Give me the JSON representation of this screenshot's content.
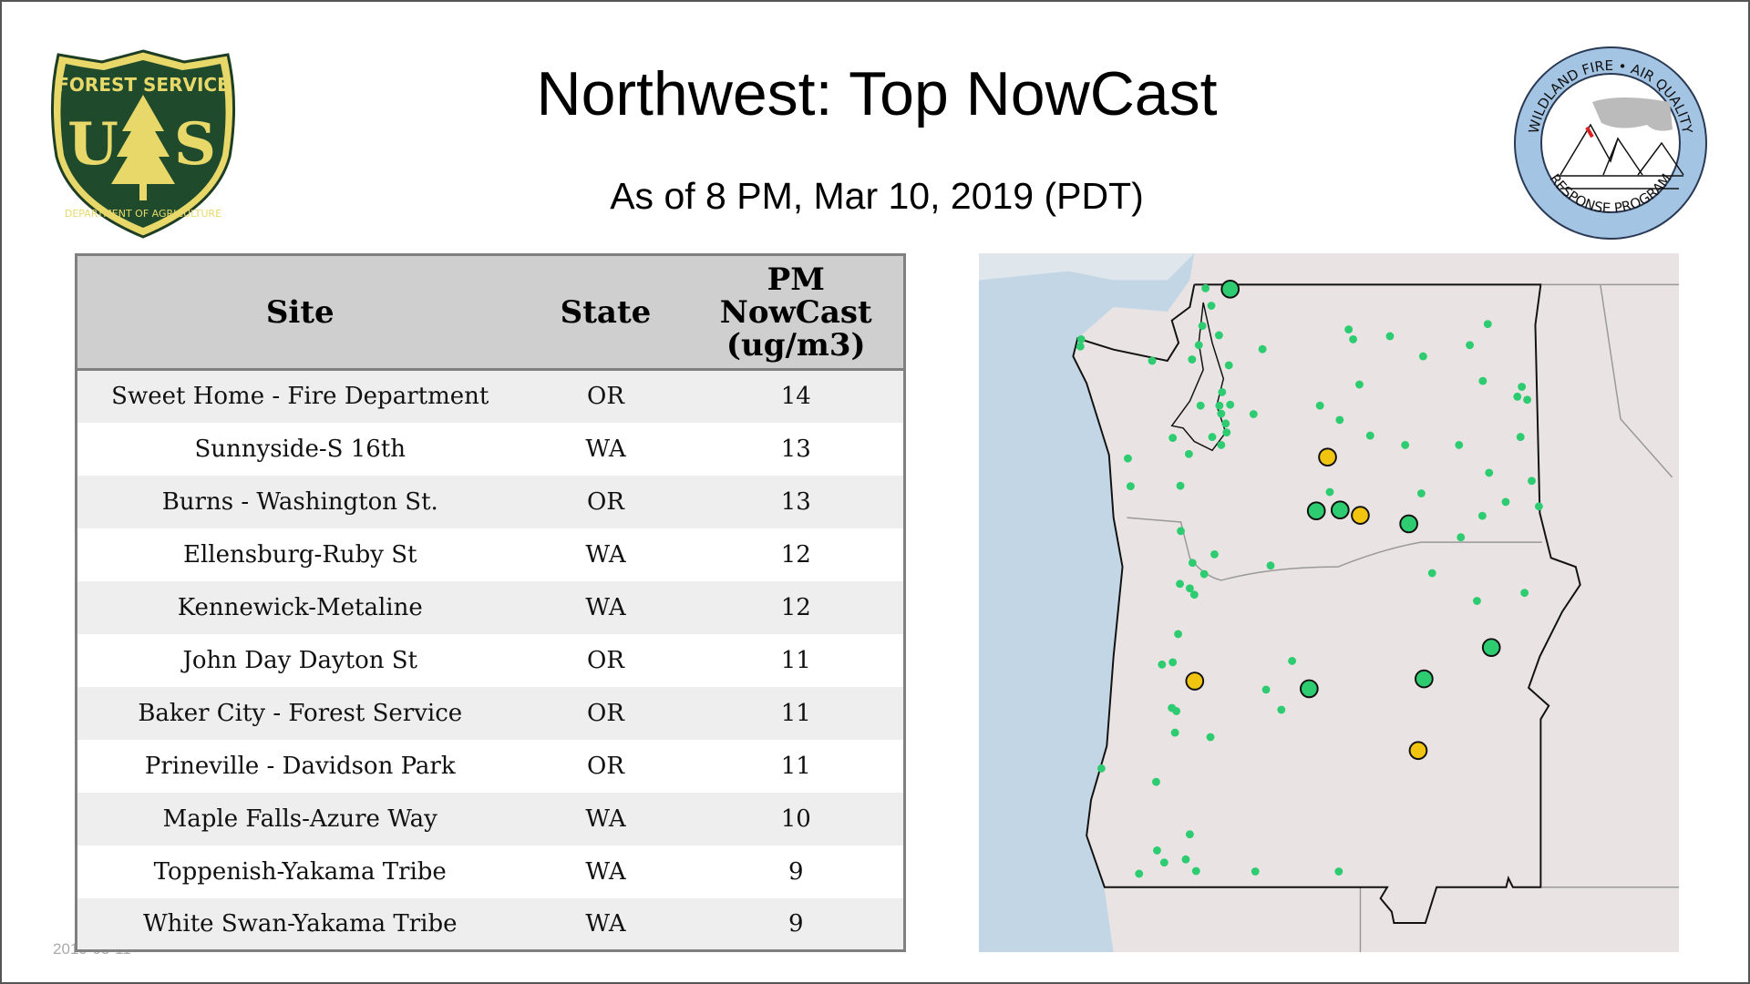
{
  "header": {
    "title": "Northwest: Top NowCast",
    "subtitle": "As of  8 PM, Mar 10, 2019 (PDT)"
  },
  "logos": {
    "left": "FOREST SERVICE U S DEPARTMENT OF AGRICULTURE",
    "right": "WILDLAND FIRE • AIR QUALITY RESPONSE PROGRAM"
  },
  "table": {
    "headers": {
      "site": "Site",
      "state": "State",
      "value_line1": "PM",
      "value_line2": "NowCast",
      "value_line3": "(ug/m3)"
    },
    "rows": [
      {
        "site": "Sweet Home - Fire Department",
        "state": "OR",
        "value": "14"
      },
      {
        "site": "Sunnyside-S 16th",
        "state": "WA",
        "value": "13"
      },
      {
        "site": "Burns - Washington St.",
        "state": "OR",
        "value": "13"
      },
      {
        "site": "Ellensburg-Ruby St",
        "state": "WA",
        "value": "12"
      },
      {
        "site": "Kennewick-Metaline",
        "state": "WA",
        "value": "12"
      },
      {
        "site": "John Day Dayton St",
        "state": "OR",
        "value": "11"
      },
      {
        "site": "Baker City - Forest Service",
        "state": "OR",
        "value": "11"
      },
      {
        "site": "Prineville - Davidson Park",
        "state": "OR",
        "value": "11"
      },
      {
        "site": "Maple Falls-Azure Way",
        "state": "WA",
        "value": "10"
      },
      {
        "site": "Toppenish-Yakama Tribe",
        "state": "WA",
        "value": "9"
      },
      {
        "site": "White Swan-Yakama Tribe",
        "state": "WA",
        "value": "9"
      }
    ]
  },
  "timestamp": "2019-03-11",
  "colors": {
    "good": "#2ecc71",
    "moderate": "#f1c40f",
    "ocean": "#c3d6e6",
    "land": "#ece7e6"
  }
}
